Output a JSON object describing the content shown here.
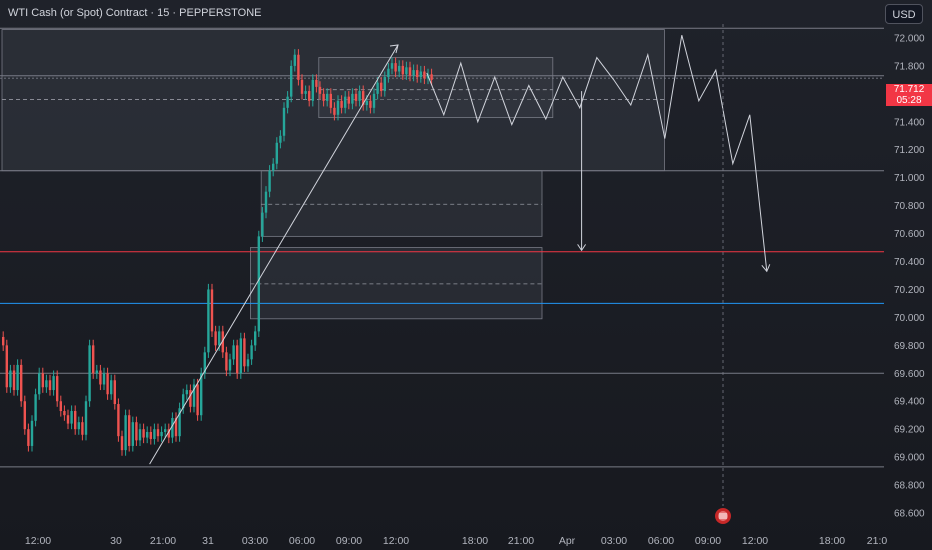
{
  "header": {
    "title": "WTI Cash (or Spot) Contract · 15 · PEPPERSTONE",
    "currency": "USD"
  },
  "price_badge": {
    "price": "71.712",
    "countdown": "05:28"
  },
  "price_axis": {
    "labels": [
      "72.000",
      "71.800",
      "71.600",
      "71.400",
      "71.200",
      "71.000",
      "70.800",
      "70.600",
      "70.400",
      "70.200",
      "70.000",
      "69.800",
      "69.600",
      "69.400",
      "69.200",
      "69.000",
      "68.800",
      "68.600"
    ]
  },
  "time_axis": {
    "labels": [
      "12:00",
      "30",
      "21:00",
      "31",
      "03:00",
      "06:00",
      "09:00",
      "12:00",
      "18:00",
      "21:00",
      "Apr",
      "03:00",
      "06:00",
      "09:00",
      "12:00",
      "18:00",
      "21:0"
    ]
  },
  "colors": {
    "up": "#26a69a",
    "down": "#ef5350",
    "red_line": "#f23645",
    "blue_line": "#2196f3",
    "zone_fill": "#3a3d46",
    "drawing": "#d1d4dc"
  },
  "chart_data": {
    "type": "candlestick",
    "symbol": "WTI Cash (or Spot) Contract",
    "interval": "15",
    "exchange": "PEPPERSTONE",
    "currency": "USD",
    "ylim": [
      68.55,
      72.1
    ],
    "last_price": 71.712,
    "horizontal_levels": [
      {
        "price": 72.07,
        "color": "#787b86"
      },
      {
        "price": 71.73,
        "color": "#787b86"
      },
      {
        "price": 71.05,
        "color": "#787b86"
      },
      {
        "price": 70.47,
        "color": "#f23645"
      },
      {
        "price": 70.1,
        "color": "#2196f3"
      },
      {
        "price": 69.6,
        "color": "#787b86"
      },
      {
        "price": 68.93,
        "color": "#787b86"
      }
    ],
    "zones": [
      {
        "top": 72.06,
        "bottom": 71.05,
        "mid": 71.56,
        "start_index": 0,
        "end_index": 184
      },
      {
        "top": 71.86,
        "bottom": 71.43,
        "mid": 71.63,
        "start_index": 88,
        "end_index": 153
      },
      {
        "top": 71.05,
        "bottom": 70.58,
        "mid": 70.81,
        "start_index": 72,
        "end_index": 150
      },
      {
        "top": 70.5,
        "bottom": 69.99,
        "mid": 70.24,
        "start_index": 69,
        "end_index": 150
      }
    ],
    "projection_path": [
      71.75,
      71.45,
      71.82,
      71.4,
      71.72,
      71.38,
      71.66,
      71.42,
      71.72,
      71.5,
      71.86,
      71.7,
      71.52,
      71.88,
      71.28,
      72.02,
      71.55,
      71.77,
      71.1,
      71.45,
      70.33
    ],
    "candles": [
      [
        69.86,
        69.8
      ],
      [
        69.8,
        69.5
      ],
      [
        69.5,
        69.62
      ],
      [
        69.62,
        69.48
      ],
      [
        69.48,
        69.66
      ],
      [
        69.66,
        69.4
      ],
      [
        69.4,
        69.2
      ],
      [
        69.2,
        69.08
      ],
      [
        69.08,
        69.26
      ],
      [
        69.26,
        69.45
      ],
      [
        69.45,
        69.6
      ],
      [
        69.6,
        69.5
      ],
      [
        69.5,
        69.55
      ],
      [
        69.55,
        69.48
      ],
      [
        69.48,
        69.58
      ],
      [
        69.58,
        69.4
      ],
      [
        69.4,
        69.33
      ],
      [
        69.33,
        69.3
      ],
      [
        69.3,
        69.24
      ],
      [
        69.24,
        69.33
      ],
      [
        69.33,
        69.2
      ],
      [
        69.2,
        69.25
      ],
      [
        69.25,
        69.16
      ],
      [
        69.16,
        69.4
      ],
      [
        69.4,
        69.8
      ],
      [
        69.8,
        69.6
      ],
      [
        69.6,
        69.62
      ],
      [
        69.62,
        69.52
      ],
      [
        69.52,
        69.6
      ],
      [
        69.6,
        69.45
      ],
      [
        69.45,
        69.55
      ],
      [
        69.55,
        69.38
      ],
      [
        69.38,
        69.15
      ],
      [
        69.15,
        69.05
      ],
      [
        69.05,
        69.3
      ],
      [
        69.3,
        69.08
      ],
      [
        69.08,
        69.25
      ],
      [
        69.25,
        69.12
      ],
      [
        69.12,
        69.2
      ],
      [
        69.2,
        69.14
      ],
      [
        69.14,
        69.18
      ],
      [
        69.18,
        69.13
      ],
      [
        69.13,
        69.2
      ],
      [
        69.2,
        69.15
      ],
      [
        69.15,
        69.18
      ],
      [
        69.18,
        69.2
      ],
      [
        69.2,
        69.14
      ],
      [
        69.14,
        69.28
      ],
      [
        69.28,
        69.15
      ],
      [
        69.15,
        69.35
      ],
      [
        69.35,
        69.45
      ],
      [
        69.45,
        69.48
      ],
      [
        69.48,
        69.36
      ],
      [
        69.36,
        69.52
      ],
      [
        69.52,
        69.3
      ],
      [
        69.3,
        69.6
      ],
      [
        69.6,
        69.75
      ],
      [
        69.75,
        70.2
      ],
      [
        70.2,
        69.9
      ],
      [
        69.9,
        69.8
      ],
      [
        69.8,
        69.9
      ],
      [
        69.9,
        69.75
      ],
      [
        69.75,
        69.62
      ],
      [
        69.62,
        69.7
      ],
      [
        69.7,
        69.8
      ],
      [
        69.8,
        69.6
      ],
      [
        69.6,
        69.85
      ],
      [
        69.85,
        69.65
      ],
      [
        69.65,
        69.7
      ],
      [
        69.7,
        69.8
      ],
      [
        69.8,
        69.9
      ],
      [
        69.9,
        70.58
      ],
      [
        70.58,
        70.75
      ],
      [
        70.75,
        70.9
      ],
      [
        70.9,
        71.05
      ],
      [
        71.05,
        71.1
      ],
      [
        71.1,
        71.25
      ],
      [
        71.25,
        71.3
      ],
      [
        71.3,
        71.5
      ],
      [
        71.5,
        71.58
      ],
      [
        71.58,
        71.8
      ],
      [
        71.8,
        71.88
      ],
      [
        71.88,
        71.7
      ],
      [
        71.7,
        71.6
      ],
      [
        71.6,
        71.62
      ],
      [
        71.62,
        71.55
      ],
      [
        71.55,
        71.7
      ],
      [
        71.7,
        71.65
      ],
      [
        71.65,
        71.6
      ],
      [
        71.6,
        71.55
      ],
      [
        71.55,
        71.6
      ],
      [
        71.6,
        71.5
      ],
      [
        71.5,
        71.45
      ],
      [
        71.45,
        71.55
      ],
      [
        71.55,
        71.5
      ],
      [
        71.5,
        71.58
      ],
      [
        71.58,
        71.53
      ],
      [
        71.53,
        71.6
      ],
      [
        71.6,
        71.55
      ],
      [
        71.55,
        71.62
      ],
      [
        71.62,
        71.52
      ],
      [
        71.52,
        71.55
      ],
      [
        71.55,
        71.5
      ],
      [
        71.5,
        71.6
      ],
      [
        71.6,
        71.68
      ],
      [
        71.68,
        71.62
      ],
      [
        71.62,
        71.72
      ],
      [
        71.72,
        71.78
      ],
      [
        71.78,
        71.82
      ],
      [
        71.82,
        71.76
      ],
      [
        71.76,
        71.8
      ],
      [
        71.8,
        71.74
      ],
      [
        71.74,
        71.79
      ],
      [
        71.79,
        71.73
      ],
      [
        71.73,
        71.77
      ],
      [
        71.77,
        71.72
      ],
      [
        71.72,
        71.76
      ],
      [
        71.76,
        71.71
      ],
      [
        71.71,
        71.74
      ],
      [
        71.74,
        71.7
      ]
    ]
  }
}
